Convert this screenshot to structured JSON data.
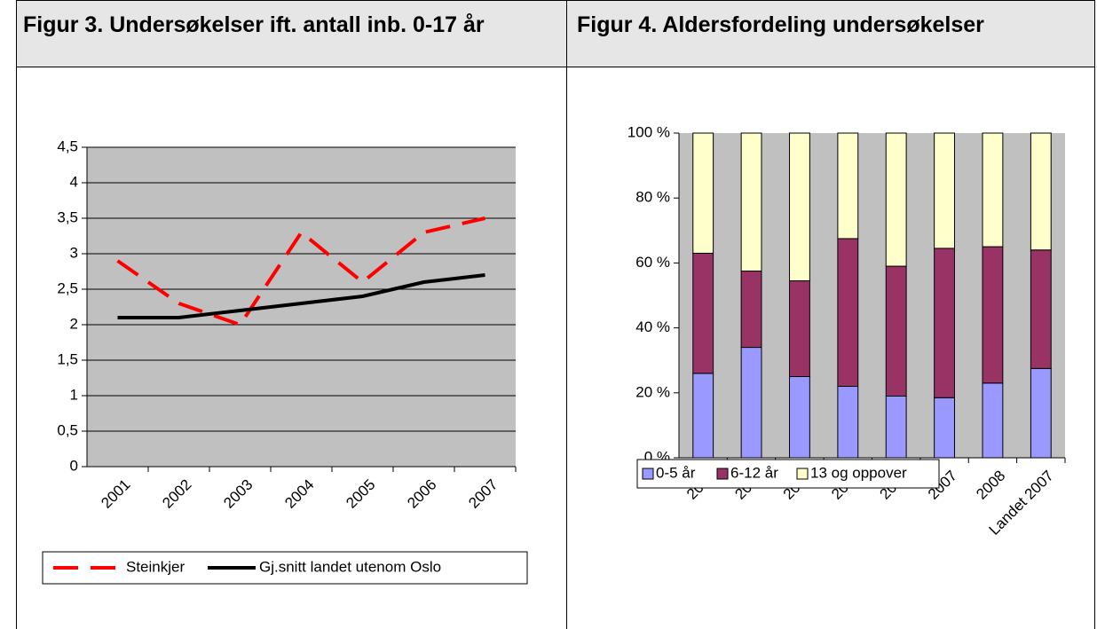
{
  "chart_data": [
    {
      "type": "line",
      "title": "Figur 3. Undersøkelser ift. antall inb. 0-17 år",
      "categories": [
        "2001",
        "2002",
        "2003",
        "2004",
        "2005",
        "2006",
        "2007"
      ],
      "series": [
        {
          "name": "Steinkjer",
          "color": "#ff0000",
          "dashed": true,
          "values": [
            2.9,
            2.3,
            2.0,
            3.3,
            2.6,
            3.3,
            3.5
          ]
        },
        {
          "name": "Gj.snitt landet utenom Oslo",
          "color": "#000000",
          "dashed": false,
          "values": [
            2.1,
            2.1,
            2.2,
            2.3,
            2.4,
            2.6,
            2.7
          ]
        }
      ],
      "ylim": [
        0,
        4.5
      ],
      "yticks": [
        0,
        {
          "value": 0.5,
          "label": "0,5"
        },
        1,
        {
          "value": 1.5,
          "label": "1,5"
        },
        2,
        {
          "value": 2.5,
          "label": "2,5"
        },
        3,
        {
          "value": 3.5,
          "label": "3,5"
        },
        4,
        {
          "value": 4.5,
          "label": "4,5"
        }
      ],
      "grid": true,
      "legend": "bottom"
    },
    {
      "type": "bar-stacked",
      "title": "Figur 4. Aldersfordeling undersøkelser",
      "categories": [
        "2002",
        "2003",
        "2004",
        "2005",
        "2006",
        "2007",
        "2008",
        "Landet 2007"
      ],
      "series": [
        {
          "name": "0-5 år",
          "color": "#9999ff",
          "values": [
            26,
            34,
            25,
            22,
            19,
            18.5,
            23,
            27.5
          ]
        },
        {
          "name": "6-12 år",
          "color": "#993366",
          "values": [
            37,
            23.5,
            29.5,
            45.5,
            40,
            46,
            42,
            36.5
          ]
        },
        {
          "name": "13 og oppover",
          "color": "#ffffcc",
          "values": [
            37,
            42.5,
            45.5,
            32.5,
            41,
            35.5,
            35,
            36
          ]
        }
      ],
      "ylim": [
        0,
        100
      ],
      "yticks": [
        {
          "value": 0,
          "label": "0 %"
        },
        {
          "value": 20,
          "label": "20 %"
        },
        {
          "value": 40,
          "label": "40 %"
        },
        {
          "value": 60,
          "label": "60 %"
        },
        {
          "value": 80,
          "label": "80 %"
        },
        {
          "value": 100,
          "label": "100 %"
        }
      ],
      "grid": false,
      "legend": "bottom"
    }
  ]
}
